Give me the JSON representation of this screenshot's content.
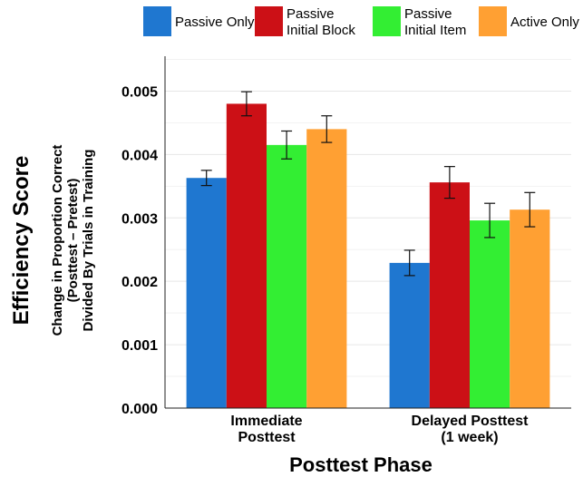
{
  "chart_data": {
    "type": "bar",
    "categories": [
      [
        "Immediate",
        "Posttest"
      ],
      [
        "Delayed Posttest",
        "(1 week)"
      ]
    ],
    "series": [
      {
        "name": [
          "Passive Only"
        ],
        "color": "#1f77d0",
        "values": [
          0.00363,
          0.00229
        ],
        "errors": [
          0.00012,
          0.0002
        ]
      },
      {
        "name": [
          "Passive",
          "Initial Block"
        ],
        "color": "#cc1016",
        "values": [
          0.0048,
          0.00356
        ],
        "errors": [
          0.00019,
          0.00025
        ]
      },
      {
        "name": [
          "Passive",
          "Initial Item"
        ],
        "color": "#33ee33",
        "values": [
          0.00415,
          0.00296
        ],
        "errors": [
          0.00022,
          0.00027
        ]
      },
      {
        "name": [
          "Active Only"
        ],
        "color": "#ffa033",
        "values": [
          0.0044,
          0.00313
        ],
        "errors": [
          0.00021,
          0.00027
        ]
      }
    ],
    "yticks": [
      0,
      0.001,
      0.002,
      0.003,
      0.004,
      0.005
    ],
    "ytick_labels": [
      "0.000",
      "0.001",
      "0.002",
      "0.003",
      "0.004",
      "0.005"
    ],
    "ylim": [
      0,
      0.00555
    ],
    "xlabel": "Posttest Phase",
    "ylabel_main": "Efficiency Score",
    "ylabel_sub": [
      "Change in Proportion Correct",
      "(Posttest – Pretest)",
      "Divided By Trials in Training"
    ],
    "grid": true,
    "legend_position": "top",
    "error_bars": true
  }
}
